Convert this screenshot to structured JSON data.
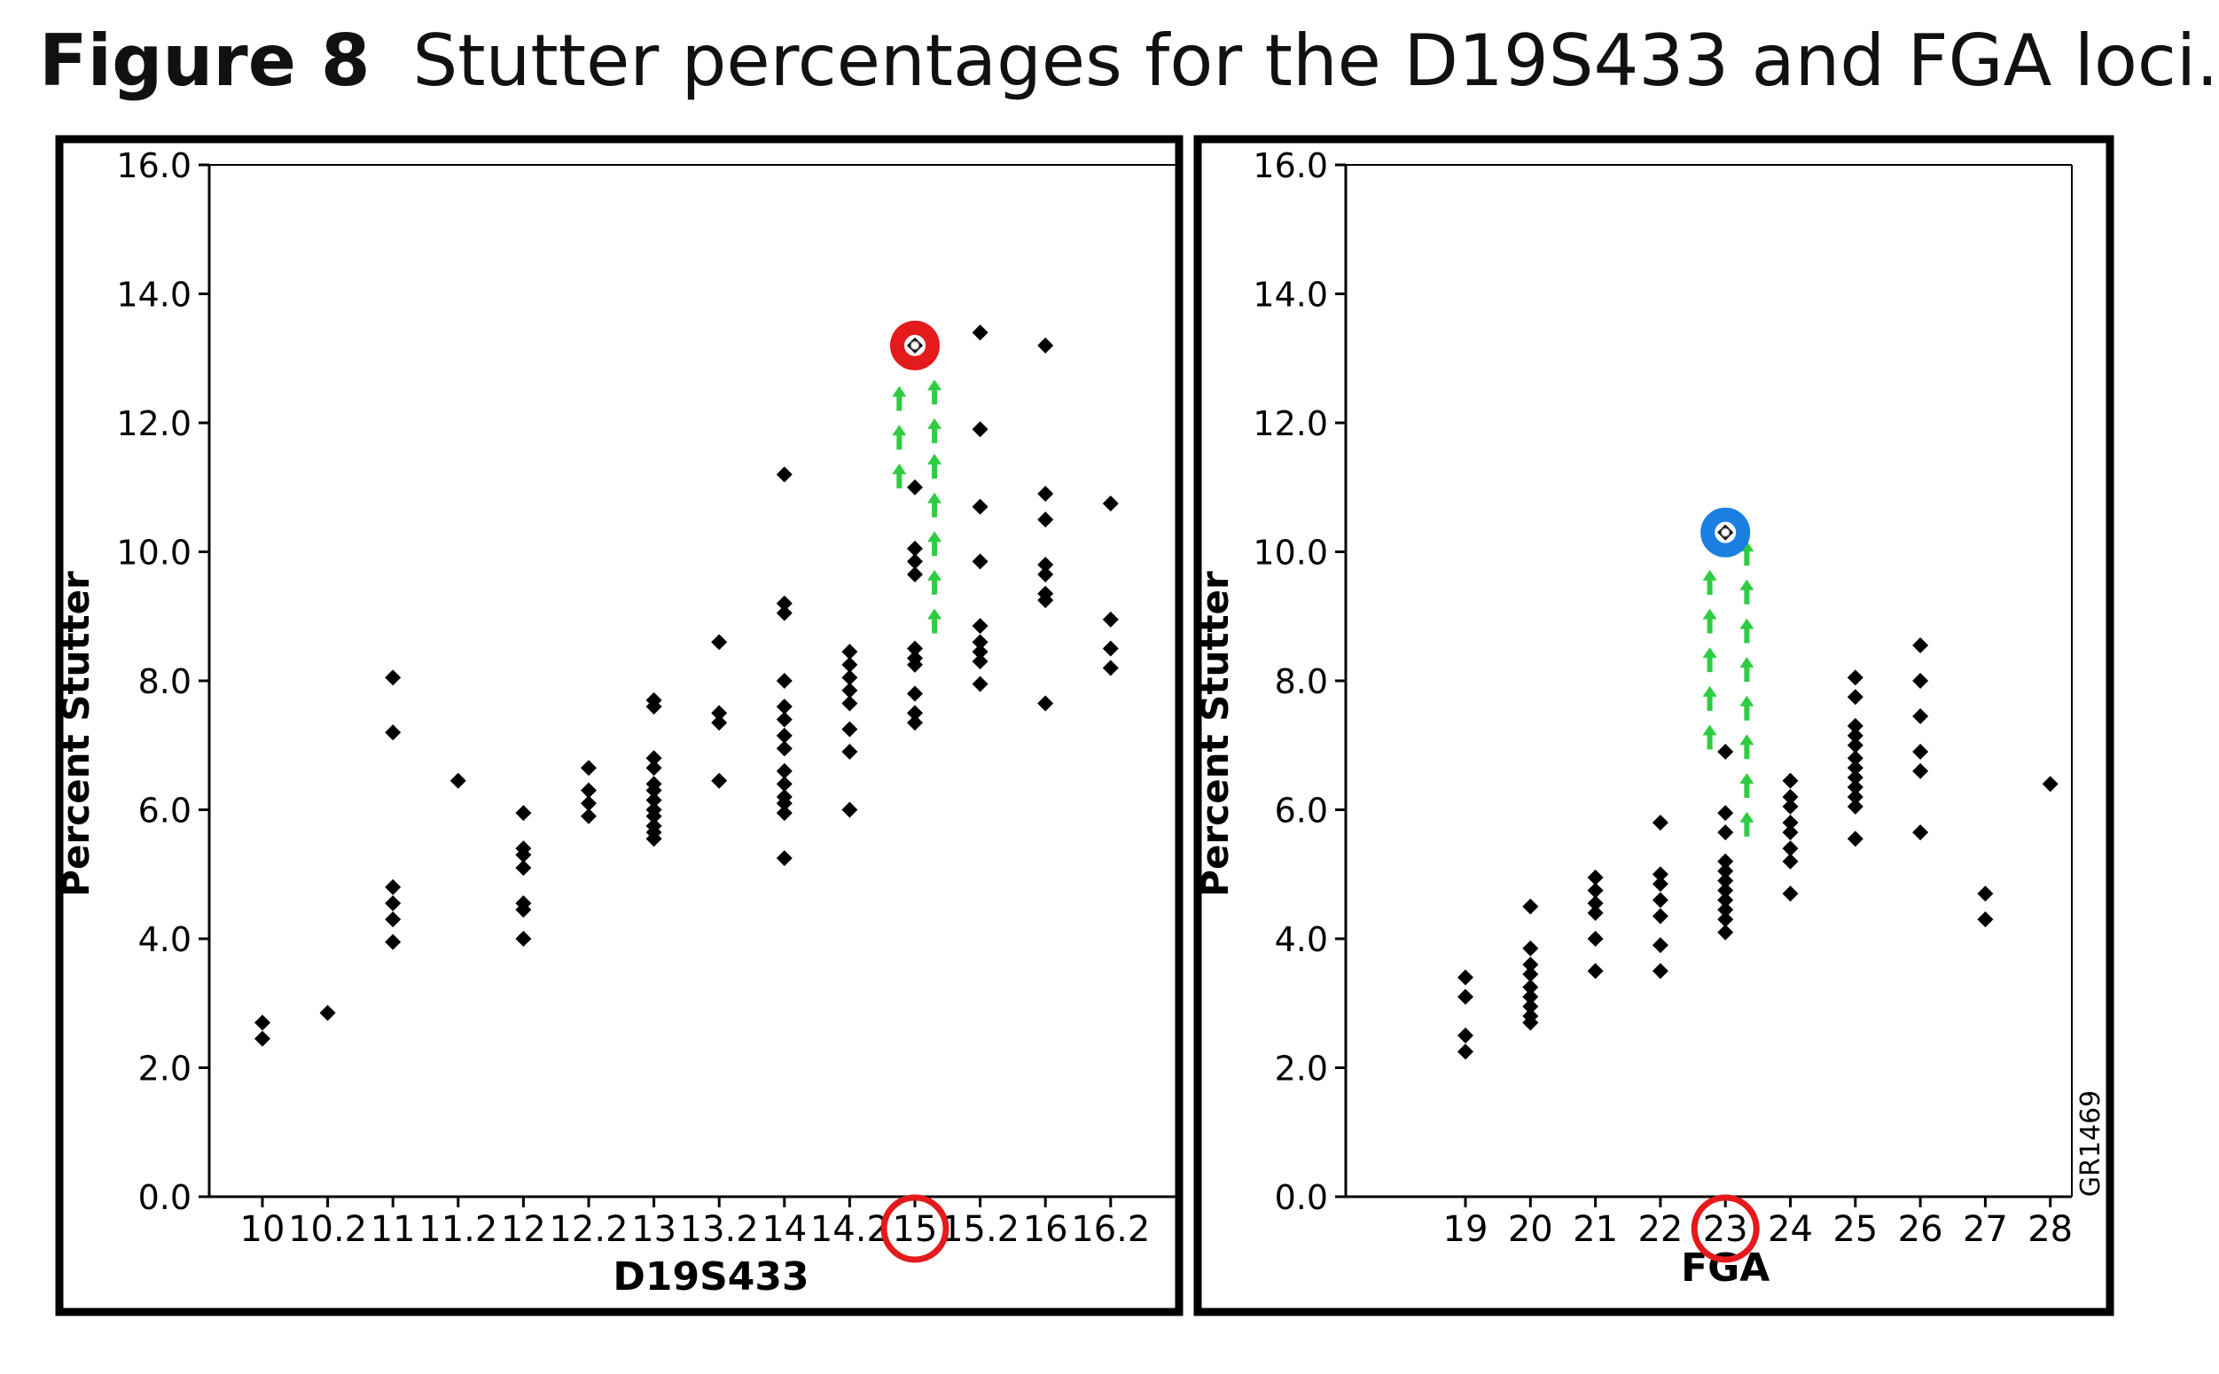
{
  "figure": {
    "label": "Figure 8",
    "caption": "Stutter percentages for the D19S433 and FGA loci."
  },
  "chart_data": [
    {
      "type": "scatter",
      "xlabel": "D19S433",
      "ylabel": "Percent Stutter",
      "ylim": [
        0,
        16
      ],
      "yticks": [
        "0.0",
        "2.0",
        "4.0",
        "6.0",
        "8.0",
        "10.0",
        "12.0",
        "14.0",
        "16.0"
      ],
      "categories": [
        "10",
        "10.2",
        "11",
        "11.2",
        "12",
        "12.2",
        "13",
        "13.2",
        "14",
        "14.2",
        "15",
        "15.2",
        "16",
        "16.2"
      ],
      "grid": false,
      "series": [
        {
          "color": "#000000",
          "points": [
            {
              "x": "10",
              "y": 2.7
            },
            {
              "x": "10",
              "y": 2.45
            },
            {
              "x": "10.2",
              "y": 2.85
            },
            {
              "x": "11",
              "y": 8.05
            },
            {
              "x": "11",
              "y": 7.2
            },
            {
              "x": "11",
              "y": 4.8
            },
            {
              "x": "11",
              "y": 4.55
            },
            {
              "x": "11",
              "y": 4.3
            },
            {
              "x": "11",
              "y": 3.95
            },
            {
              "x": "11.2",
              "y": 6.45
            },
            {
              "x": "12",
              "y": 5.95
            },
            {
              "x": "12",
              "y": 5.4
            },
            {
              "x": "12",
              "y": 5.3
            },
            {
              "x": "12",
              "y": 5.1
            },
            {
              "x": "12",
              "y": 4.55
            },
            {
              "x": "12",
              "y": 4.45
            },
            {
              "x": "12",
              "y": 4.0
            },
            {
              "x": "12.2",
              "y": 6.65
            },
            {
              "x": "12.2",
              "y": 6.3
            },
            {
              "x": "12.2",
              "y": 6.1
            },
            {
              "x": "12.2",
              "y": 5.9
            },
            {
              "x": "13",
              "y": 7.7
            },
            {
              "x": "13",
              "y": 7.6
            },
            {
              "x": "13",
              "y": 6.8
            },
            {
              "x": "13",
              "y": 6.65
            },
            {
              "x": "13",
              "y": 6.4
            },
            {
              "x": "13",
              "y": 6.3
            },
            {
              "x": "13",
              "y": 6.15
            },
            {
              "x": "13",
              "y": 6.0
            },
            {
              "x": "13",
              "y": 5.9
            },
            {
              "x": "13",
              "y": 5.75
            },
            {
              "x": "13",
              "y": 5.65
            },
            {
              "x": "13",
              "y": 5.55
            },
            {
              "x": "13.2",
              "y": 8.6
            },
            {
              "x": "13.2",
              "y": 7.5
            },
            {
              "x": "13.2",
              "y": 7.35
            },
            {
              "x": "13.2",
              "y": 6.45
            },
            {
              "x": "14",
              "y": 11.2
            },
            {
              "x": "14",
              "y": 9.2
            },
            {
              "x": "14",
              "y": 9.05
            },
            {
              "x": "14",
              "y": 8.0
            },
            {
              "x": "14",
              "y": 7.6
            },
            {
              "x": "14",
              "y": 7.4
            },
            {
              "x": "14",
              "y": 7.15
            },
            {
              "x": "14",
              "y": 6.95
            },
            {
              "x": "14",
              "y": 6.6
            },
            {
              "x": "14",
              "y": 6.4
            },
            {
              "x": "14",
              "y": 6.2
            },
            {
              "x": "14",
              "y": 6.1
            },
            {
              "x": "14",
              "y": 5.95
            },
            {
              "x": "14",
              "y": 5.25
            },
            {
              "x": "14.2",
              "y": 8.45
            },
            {
              "x": "14.2",
              "y": 8.25
            },
            {
              "x": "14.2",
              "y": 8.05
            },
            {
              "x": "14.2",
              "y": 7.85
            },
            {
              "x": "14.2",
              "y": 7.65
            },
            {
              "x": "14.2",
              "y": 7.25
            },
            {
              "x": "14.2",
              "y": 6.9
            },
            {
              "x": "14.2",
              "y": 6.0
            },
            {
              "x": "15",
              "y": 13.2
            },
            {
              "x": "15",
              "y": 11.0
            },
            {
              "x": "15",
              "y": 10.05
            },
            {
              "x": "15",
              "y": 9.85
            },
            {
              "x": "15",
              "y": 9.65
            },
            {
              "x": "15",
              "y": 8.5
            },
            {
              "x": "15",
              "y": 8.35
            },
            {
              "x": "15",
              "y": 8.25
            },
            {
              "x": "15",
              "y": 7.8
            },
            {
              "x": "15",
              "y": 7.5
            },
            {
              "x": "15",
              "y": 7.35
            },
            {
              "x": "15.2",
              "y": 13.4
            },
            {
              "x": "15.2",
              "y": 11.9
            },
            {
              "x": "15.2",
              "y": 10.7
            },
            {
              "x": "15.2",
              "y": 9.85
            },
            {
              "x": "15.2",
              "y": 8.85
            },
            {
              "x": "15.2",
              "y": 8.6
            },
            {
              "x": "15.2",
              "y": 8.45
            },
            {
              "x": "15.2",
              "y": 8.3
            },
            {
              "x": "15.2",
              "y": 7.95
            },
            {
              "x": "16",
              "y": 13.2
            },
            {
              "x": "16",
              "y": 10.9
            },
            {
              "x": "16",
              "y": 10.5
            },
            {
              "x": "16",
              "y": 9.8
            },
            {
              "x": "16",
              "y": 9.65
            },
            {
              "x": "16",
              "y": 9.35
            },
            {
              "x": "16",
              "y": 9.25
            },
            {
              "x": "16",
              "y": 7.65
            },
            {
              "x": "16.2",
              "y": 10.75
            },
            {
              "x": "16.2",
              "y": 8.95
            },
            {
              "x": "16.2",
              "y": 8.5
            },
            {
              "x": "16.2",
              "y": 8.2
            }
          ]
        }
      ],
      "annotations": {
        "highlighted_category": "15",
        "marker_point": {
          "x": "15",
          "y": 13.2,
          "color": "#e41a1c"
        },
        "arrows_color": "#2ecc40",
        "arrow_columns": [
          {
            "offset": -0.24,
            "y": [
              11.15,
              11.75,
              12.35
            ]
          },
          {
            "offset": 0.3,
            "y": [
              8.9,
              9.5,
              10.1,
              10.7,
              11.3,
              11.85,
              12.45
            ]
          }
        ]
      }
    },
    {
      "type": "scatter",
      "xlabel": "FGA",
      "ylabel": "Percent Stutter",
      "ylim": [
        0,
        16
      ],
      "yticks": [
        "0.0",
        "2.0",
        "4.0",
        "6.0",
        "8.0",
        "10.0",
        "12.0",
        "14.0",
        "16.0"
      ],
      "categories": [
        "19",
        "20",
        "21",
        "22",
        "23",
        "24",
        "25",
        "26",
        "27",
        "28"
      ],
      "grid": false,
      "side_label": "GR1469",
      "series": [
        {
          "color": "#000000",
          "points": [
            {
              "x": "19",
              "y": 3.4
            },
            {
              "x": "19",
              "y": 3.1
            },
            {
              "x": "19",
              "y": 2.5
            },
            {
              "x": "19",
              "y": 2.25
            },
            {
              "x": "20",
              "y": 4.5
            },
            {
              "x": "20",
              "y": 3.85
            },
            {
              "x": "20",
              "y": 3.6
            },
            {
              "x": "20",
              "y": 3.45
            },
            {
              "x": "20",
              "y": 3.25
            },
            {
              "x": "20",
              "y": 3.1
            },
            {
              "x": "20",
              "y": 2.95
            },
            {
              "x": "20",
              "y": 2.8
            },
            {
              "x": "20",
              "y": 2.7
            },
            {
              "x": "21",
              "y": 4.95
            },
            {
              "x": "21",
              "y": 4.75
            },
            {
              "x": "21",
              "y": 4.55
            },
            {
              "x": "21",
              "y": 4.4
            },
            {
              "x": "21",
              "y": 4.0
            },
            {
              "x": "21",
              "y": 3.5
            },
            {
              "x": "22",
              "y": 5.8
            },
            {
              "x": "22",
              "y": 5.0
            },
            {
              "x": "22",
              "y": 4.85
            },
            {
              "x": "22",
              "y": 4.6
            },
            {
              "x": "22",
              "y": 4.35
            },
            {
              "x": "22",
              "y": 3.9
            },
            {
              "x": "22",
              "y": 3.5
            },
            {
              "x": "23",
              "y": 10.3
            },
            {
              "x": "23",
              "y": 6.9
            },
            {
              "x": "23",
              "y": 5.95
            },
            {
              "x": "23",
              "y": 5.65
            },
            {
              "x": "23",
              "y": 5.2
            },
            {
              "x": "23",
              "y": 5.05
            },
            {
              "x": "23",
              "y": 4.9
            },
            {
              "x": "23",
              "y": 4.75
            },
            {
              "x": "23",
              "y": 4.6
            },
            {
              "x": "23",
              "y": 4.45
            },
            {
              "x": "23",
              "y": 4.3
            },
            {
              "x": "23",
              "y": 4.1
            },
            {
              "x": "24",
              "y": 6.45
            },
            {
              "x": "24",
              "y": 6.2
            },
            {
              "x": "24",
              "y": 6.05
            },
            {
              "x": "24",
              "y": 5.8
            },
            {
              "x": "24",
              "y": 5.65
            },
            {
              "x": "24",
              "y": 5.4
            },
            {
              "x": "24",
              "y": 5.2
            },
            {
              "x": "24",
              "y": 4.7
            },
            {
              "x": "25",
              "y": 8.05
            },
            {
              "x": "25",
              "y": 7.75
            },
            {
              "x": "25",
              "y": 7.3
            },
            {
              "x": "25",
              "y": 7.15
            },
            {
              "x": "25",
              "y": 7.0
            },
            {
              "x": "25",
              "y": 6.8
            },
            {
              "x": "25",
              "y": 6.65
            },
            {
              "x": "25",
              "y": 6.5
            },
            {
              "x": "25",
              "y": 6.35
            },
            {
              "x": "25",
              "y": 6.2
            },
            {
              "x": "25",
              "y": 6.05
            },
            {
              "x": "25",
              "y": 5.55
            },
            {
              "x": "26",
              "y": 8.55
            },
            {
              "x": "26",
              "y": 8.0
            },
            {
              "x": "26",
              "y": 7.45
            },
            {
              "x": "26",
              "y": 6.9
            },
            {
              "x": "26",
              "y": 6.6
            },
            {
              "x": "26",
              "y": 5.65
            },
            {
              "x": "27",
              "y": 4.7
            },
            {
              "x": "27",
              "y": 4.3
            },
            {
              "x": "28",
              "y": 6.4
            }
          ]
        }
      ],
      "annotations": {
        "highlighted_category": "23",
        "marker_point": {
          "x": "23",
          "y": 10.3,
          "color": "#1a7fe0"
        },
        "arrows_color": "#2ecc40",
        "arrow_columns": [
          {
            "offset": -0.24,
            "y": [
              7.1,
              7.7,
              8.3,
              8.9,
              9.5
            ]
          },
          {
            "offset": 0.33,
            "y": [
              5.75,
              6.35,
              6.95,
              7.55,
              8.15,
              8.75,
              9.35,
              9.95
            ]
          }
        ]
      }
    }
  ]
}
